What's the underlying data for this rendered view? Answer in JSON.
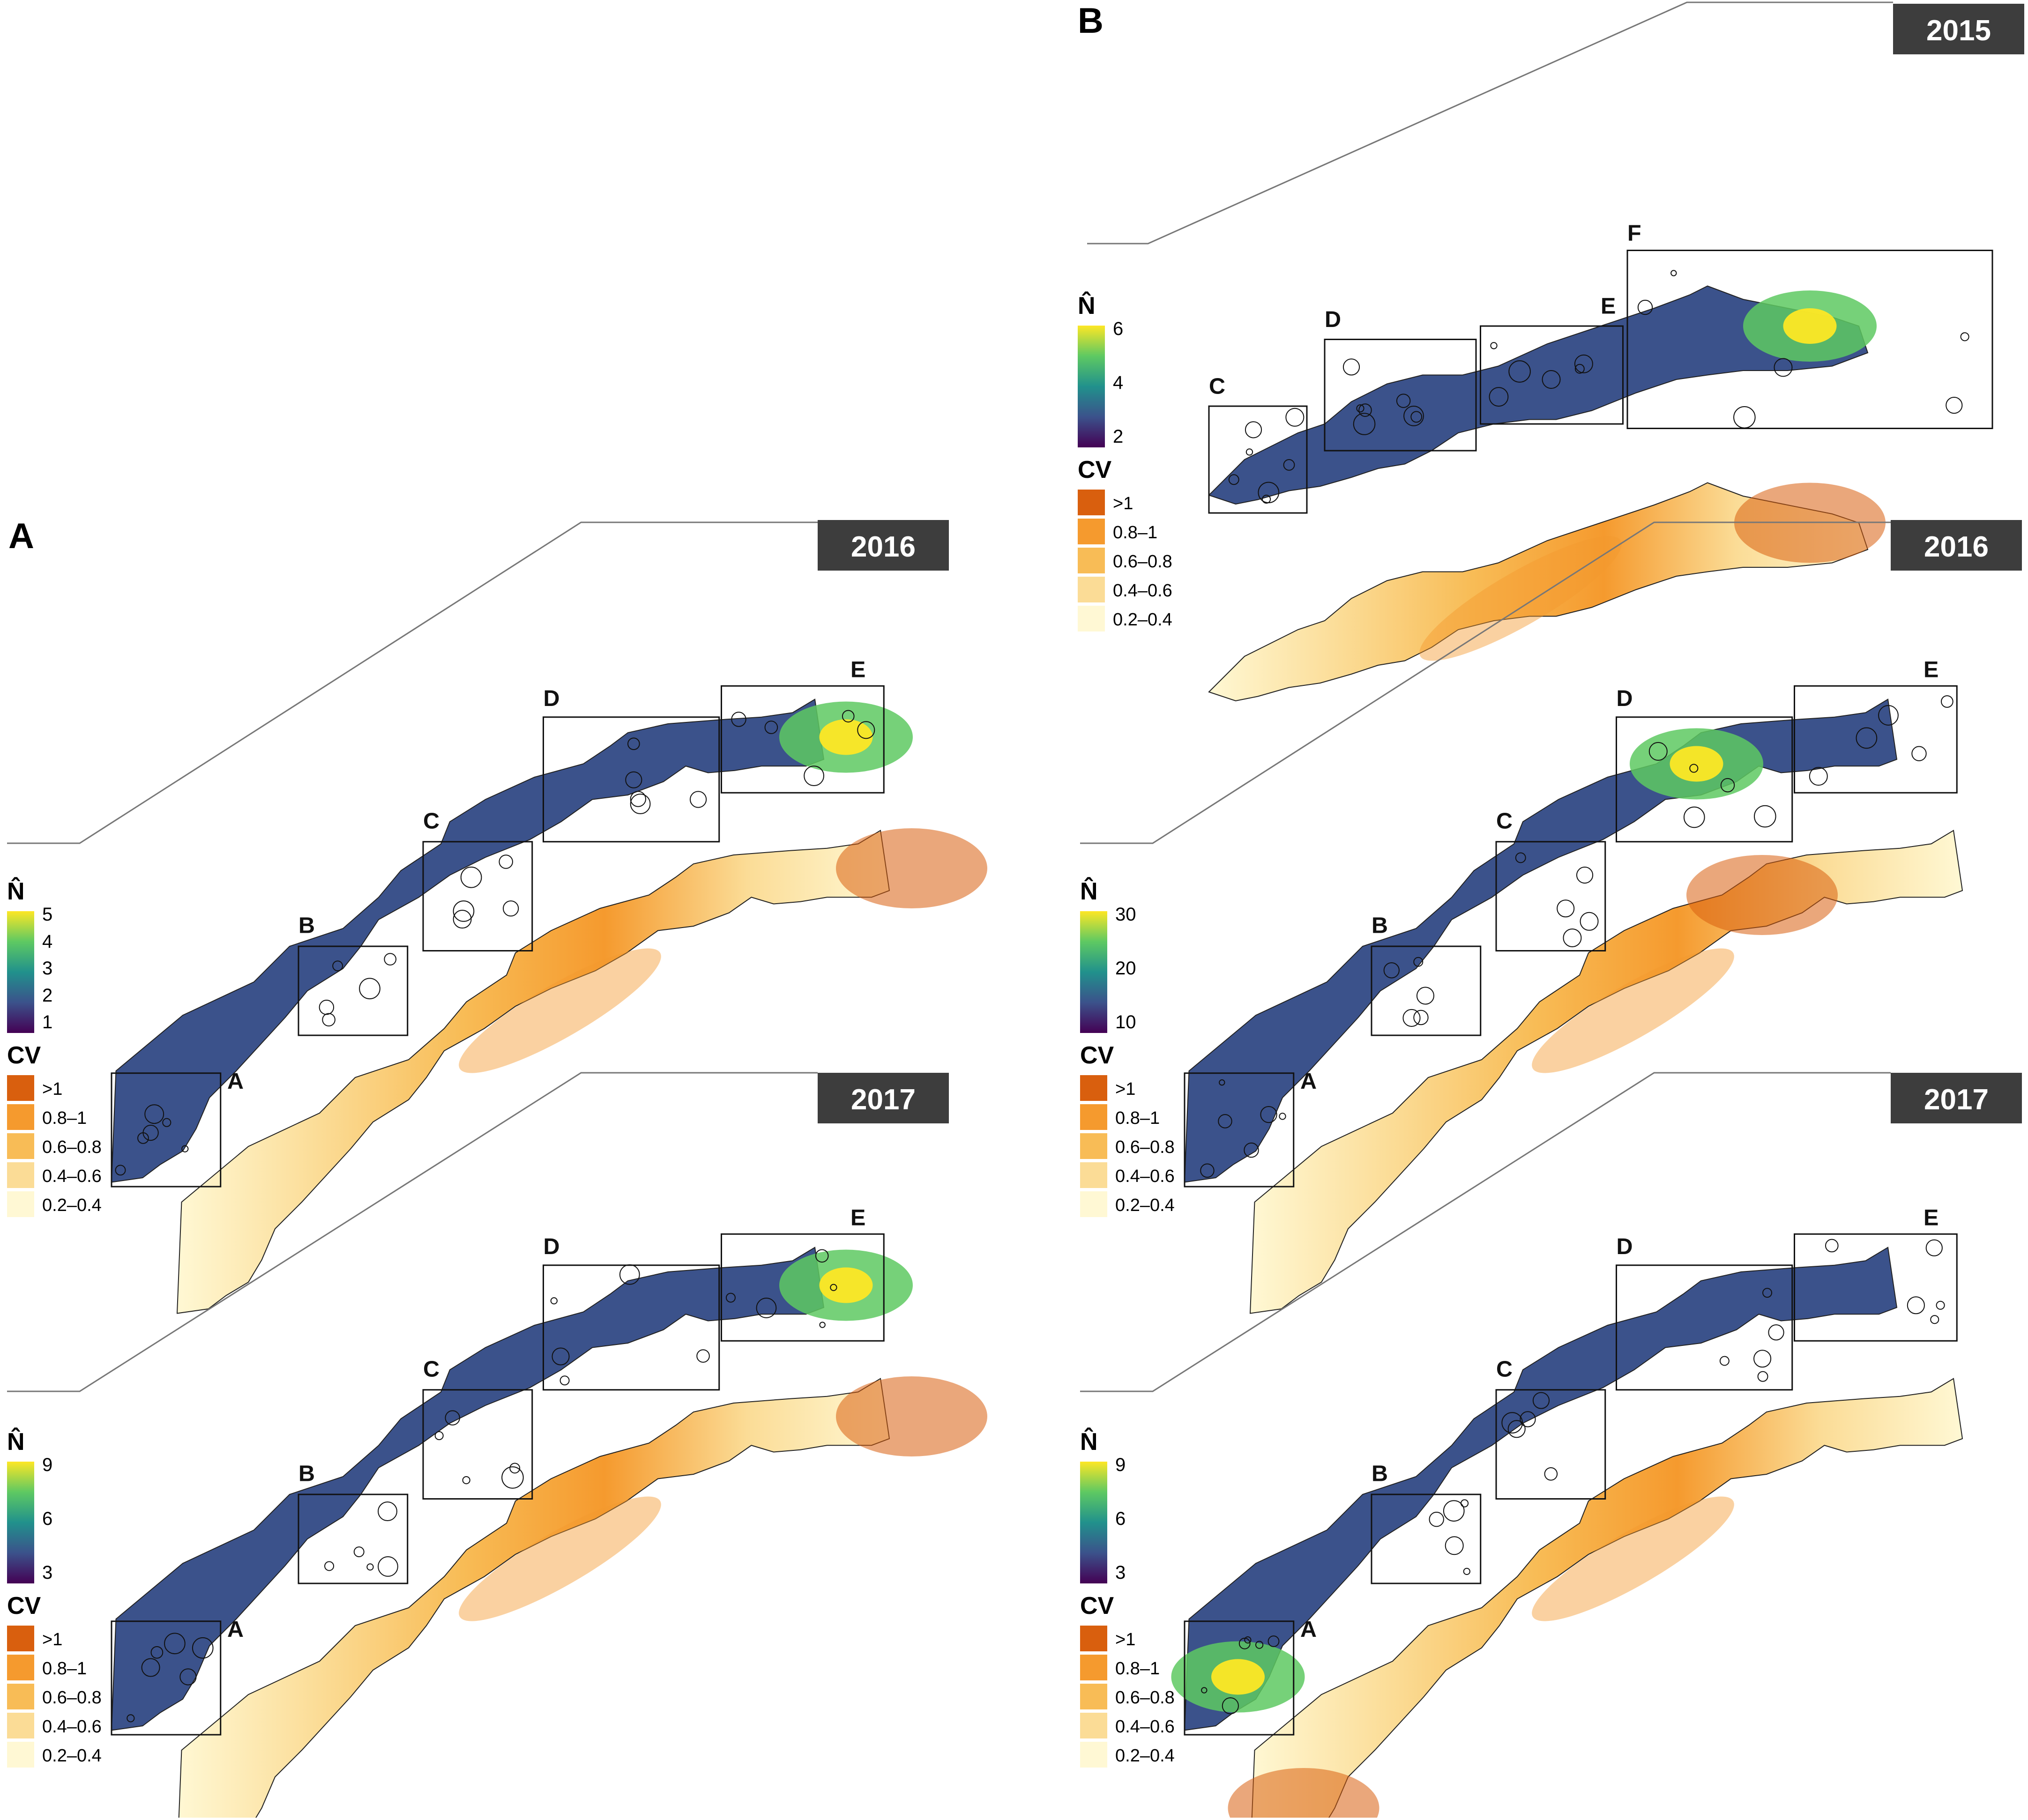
{
  "figure": {
    "panels": [
      {
        "label": "A",
        "maps": [
          {
            "year": "2016",
            "nhat_ticks": [
              "5",
              "4",
              "3",
              "2",
              "1"
            ],
            "boxes": [
              "A",
              "B",
              "C",
              "D",
              "E"
            ],
            "hotspot": "E"
          },
          {
            "year": "2017",
            "nhat_ticks": [
              "9",
              "6",
              "3"
            ],
            "boxes": [
              "A",
              "B",
              "C",
              "D",
              "E"
            ],
            "hotspot": "E"
          }
        ]
      },
      {
        "label": "B",
        "maps": [
          {
            "year": "2015",
            "nhat_ticks": [
              "6",
              "4",
              "2"
            ],
            "boxes": [
              "C",
              "D",
              "E",
              "F"
            ],
            "hotspot": "F"
          },
          {
            "year": "2016",
            "nhat_ticks": [
              "30",
              "20",
              "10"
            ],
            "boxes": [
              "A",
              "B",
              "C",
              "D",
              "E"
            ],
            "hotspot": "D"
          },
          {
            "year": "2017",
            "nhat_ticks": [
              "9",
              "6",
              "3"
            ],
            "boxes": [
              "A",
              "B",
              "C",
              "D",
              "E"
            ],
            "hotspot": "A"
          }
        ]
      }
    ],
    "legend": {
      "nhat_title": "N̂",
      "cv_title": "CV",
      "cv_classes": [
        {
          "label": ">1",
          "color": "#d95f0e"
        },
        {
          "label": "0.8–1",
          "color": "#f59a2e"
        },
        {
          "label": "0.6–0.8",
          "color": "#f8bc56"
        },
        {
          "label": "0.4–0.6",
          "color": "#fbdc96"
        },
        {
          "label": "0.2–0.4",
          "color": "#fff8d4"
        }
      ]
    },
    "colors": {
      "viridis": [
        "#440154",
        "#3b528b",
        "#21918c",
        "#5ec962",
        "#fde725"
      ],
      "year_badge_bg": "#3d3d3d",
      "year_badge_text": "#ffffff"
    }
  }
}
